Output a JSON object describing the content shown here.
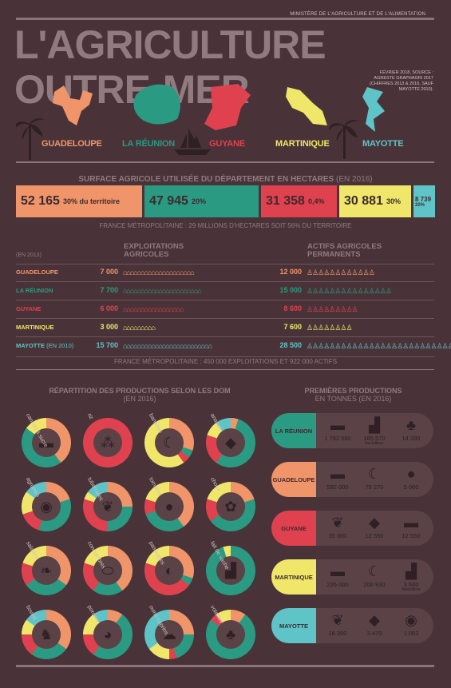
{
  "header": {
    "ministry": "MINISTÈRE DE L'AGRICULTURE ET DE L'ALIMENTATION",
    "title": "L'AGRICULTURE OUTRE-MER",
    "source": "FÉVRIER 2018, SOURCE : AGRESTE GRAPHAGRI 2017 (CHIFFRES 2013 & 2016, SAUF MAYOTTE 2010)."
  },
  "colors": {
    "guadeloupe": "#f0956a",
    "reunion": "#2a9a82",
    "guyane": "#e0414f",
    "martinique": "#f0e76a",
    "mayotte": "#5fc4c8",
    "background": "#4a3338"
  },
  "departments": [
    {
      "name": "GUADELOUPE",
      "color": "#f0956a"
    },
    {
      "name": "LA RÉUNION",
      "color": "#2a9a82"
    },
    {
      "name": "GUYANE",
      "color": "#e0414f"
    },
    {
      "name": "MARTINIQUE",
      "color": "#f0e76a"
    },
    {
      "name": "MAYOTTE",
      "color": "#5fc4c8"
    }
  ],
  "surface": {
    "title": "SURFACE AGRICOLE UTILISÉE DU DÉPARTEMENT EN HECTARES",
    "year": "(EN 2016)",
    "bars": [
      {
        "value": "52 165",
        "pct": "30% du territoire",
        "color": "#f0956a"
      },
      {
        "value": "47 945",
        "pct": "20%",
        "color": "#2a9a82"
      },
      {
        "value": "31 358",
        "pct": "0,4%",
        "color": "#e0414f"
      },
      {
        "value": "30 881",
        "pct": "30%",
        "color": "#f0e76a"
      },
      {
        "value": "8 739",
        "pct": "20%",
        "color": "#5fc4c8"
      }
    ],
    "note": "FRANCE MÉTROPOLITAINE : 29 MILLIONS D'HECTARES SOIT 56% DU TERRITOIRE"
  },
  "exploitations": {
    "year": "(EN 2013)",
    "col1": "EXPLOITATIONS AGRICOLES",
    "col2": "ACTIFS AGRICOLES PERMANENTS",
    "rows": [
      {
        "name": "GUADELOUPE",
        "extra": "",
        "expl": "7 000",
        "actifs": "12 000",
        "color": "#f0956a",
        "houses": 20,
        "people": 12
      },
      {
        "name": "LA RÉUNION",
        "extra": "",
        "expl": "7 700",
        "actifs": "15 000",
        "color": "#2a9a82",
        "houses": 22,
        "people": 15
      },
      {
        "name": "GUYANE",
        "extra": "",
        "expl": "6 000",
        "actifs": "8 600",
        "color": "#e0414f",
        "houses": 17,
        "people": 9
      },
      {
        "name": "MARTINIQUE",
        "extra": "",
        "expl": "3 000",
        "actifs": "7 600",
        "color": "#f0e76a",
        "houses": 9,
        "people": 8
      },
      {
        "name": "MAYOTTE",
        "extra": "(EN 2010)",
        "expl": "15 700",
        "actifs": "28 500",
        "color": "#5fc4c8",
        "houses": 25,
        "people": 29
      }
    ],
    "note": "FRANCE MÉTROPOLITAINE : 450 000 EXPLOITATIONS ET 922 000 ACTIFS"
  },
  "repartition": {
    "title": "RÉPARTITION DES PRODUCTIONS SELON LES DOM",
    "year": "(EN 2016)",
    "items": [
      {
        "label": "cannes à sucre",
        "icon": "▬",
        "shares": [
          0.4,
          0.45,
          0,
          0.15,
          0
        ]
      },
      {
        "label": "riz",
        "icon": "⁂",
        "shares": [
          0,
          0,
          1.0,
          0,
          0
        ]
      },
      {
        "label": "bananes",
        "icon": "☾",
        "shares": [
          0.3,
          0.05,
          0.05,
          0.6,
          0
        ]
      },
      {
        "label": "ananas",
        "icon": "◆",
        "shares": [
          0.05,
          0.55,
          0.2,
          0.1,
          0.1
        ]
      },
      {
        "label": "agrumes",
        "icon": "◉",
        "shares": [
          0.2,
          0.35,
          0.15,
          0.15,
          0.15
        ]
      },
      {
        "label": "tubercules",
        "icon": "❦",
        "shares": [
          0.25,
          0.25,
          0.3,
          0.05,
          0.15
        ]
      },
      {
        "label": "tomates",
        "icon": "●",
        "shares": [
          0.4,
          0.3,
          0.1,
          0.2,
          0
        ]
      },
      {
        "label": "choux",
        "icon": "✿",
        "shares": [
          0.2,
          0.45,
          0.15,
          0.2,
          0
        ]
      },
      {
        "label": "salades",
        "icon": "❧",
        "shares": [
          0.35,
          0.3,
          0.15,
          0.2,
          0
        ]
      },
      {
        "label": "concombres",
        "icon": "⬭",
        "shares": [
          0.4,
          0.2,
          0.2,
          0.2,
          0
        ]
      },
      {
        "label": "pastèques",
        "icon": "◐",
        "shares": [
          0.3,
          0.05,
          0.45,
          0.2,
          0
        ]
      },
      {
        "label": "lait de vache",
        "icon": "▟",
        "shares": [
          0,
          0.95,
          0,
          0.05,
          0
        ]
      },
      {
        "label": "bovins",
        "icon": "♞",
        "shares": [
          0.35,
          0.25,
          0.15,
          0.1,
          0.15
        ]
      },
      {
        "label": "porcins",
        "icon": "◕",
        "shares": [
          0.1,
          0.5,
          0.15,
          0.15,
          0.1
        ]
      },
      {
        "label": "ovins-caprins",
        "icon": "☁",
        "shares": [
          0.25,
          0.2,
          0.05,
          0.15,
          0.35
        ]
      },
      {
        "label": "volailles",
        "icon": "♣",
        "shares": [
          0.1,
          0.75,
          0.05,
          0.1,
          0
        ]
      }
    ]
  },
  "premieres": {
    "title": "PREMIÈRES PRODUCTIONS",
    "subtitle": "EN TONNES (EN 2016)",
    "rows": [
      {
        "name": "LA RÉUNION",
        "color": "#2a9a82",
        "items": [
          {
            "icon": "▬",
            "value": "1 782 560",
            "unit": ""
          },
          {
            "icon": "▟",
            "value": "185 570",
            "unit": "hectolitres"
          },
          {
            "icon": "♣",
            "value": "14 280",
            "unit": ""
          }
        ]
      },
      {
        "name": "GUADELOUPE",
        "color": "#f0956a",
        "items": [
          {
            "icon": "▬",
            "value": "592 000",
            "unit": ""
          },
          {
            "icon": "☾",
            "value": "75 270",
            "unit": ""
          },
          {
            "icon": "●",
            "value": "5 060",
            "unit": ""
          }
        ]
      },
      {
        "name": "GUYANE",
        "color": "#e0414f",
        "items": [
          {
            "icon": "❦",
            "value": "35 000",
            "unit": ""
          },
          {
            "icon": "◆",
            "value": "12 550",
            "unit": ""
          },
          {
            "icon": "▬",
            "value": "12 550",
            "unit": ""
          }
        ]
      },
      {
        "name": "MARTINIQUE",
        "color": "#f0e76a",
        "items": [
          {
            "icon": "▬",
            "value": "226 000",
            "unit": ""
          },
          {
            "icon": "☾",
            "value": "200 930",
            "unit": ""
          },
          {
            "icon": "▟",
            "value": "3 640",
            "unit": "hectolitres"
          }
        ]
      },
      {
        "name": "MAYOTTE",
        "color": "#5fc4c8",
        "items": [
          {
            "icon": "❦",
            "value": "16 390",
            "unit": ""
          },
          {
            "icon": "◆",
            "value": "3 470",
            "unit": ""
          },
          {
            "icon": "◉",
            "value": "1 053",
            "unit": ""
          }
        ]
      }
    ]
  }
}
